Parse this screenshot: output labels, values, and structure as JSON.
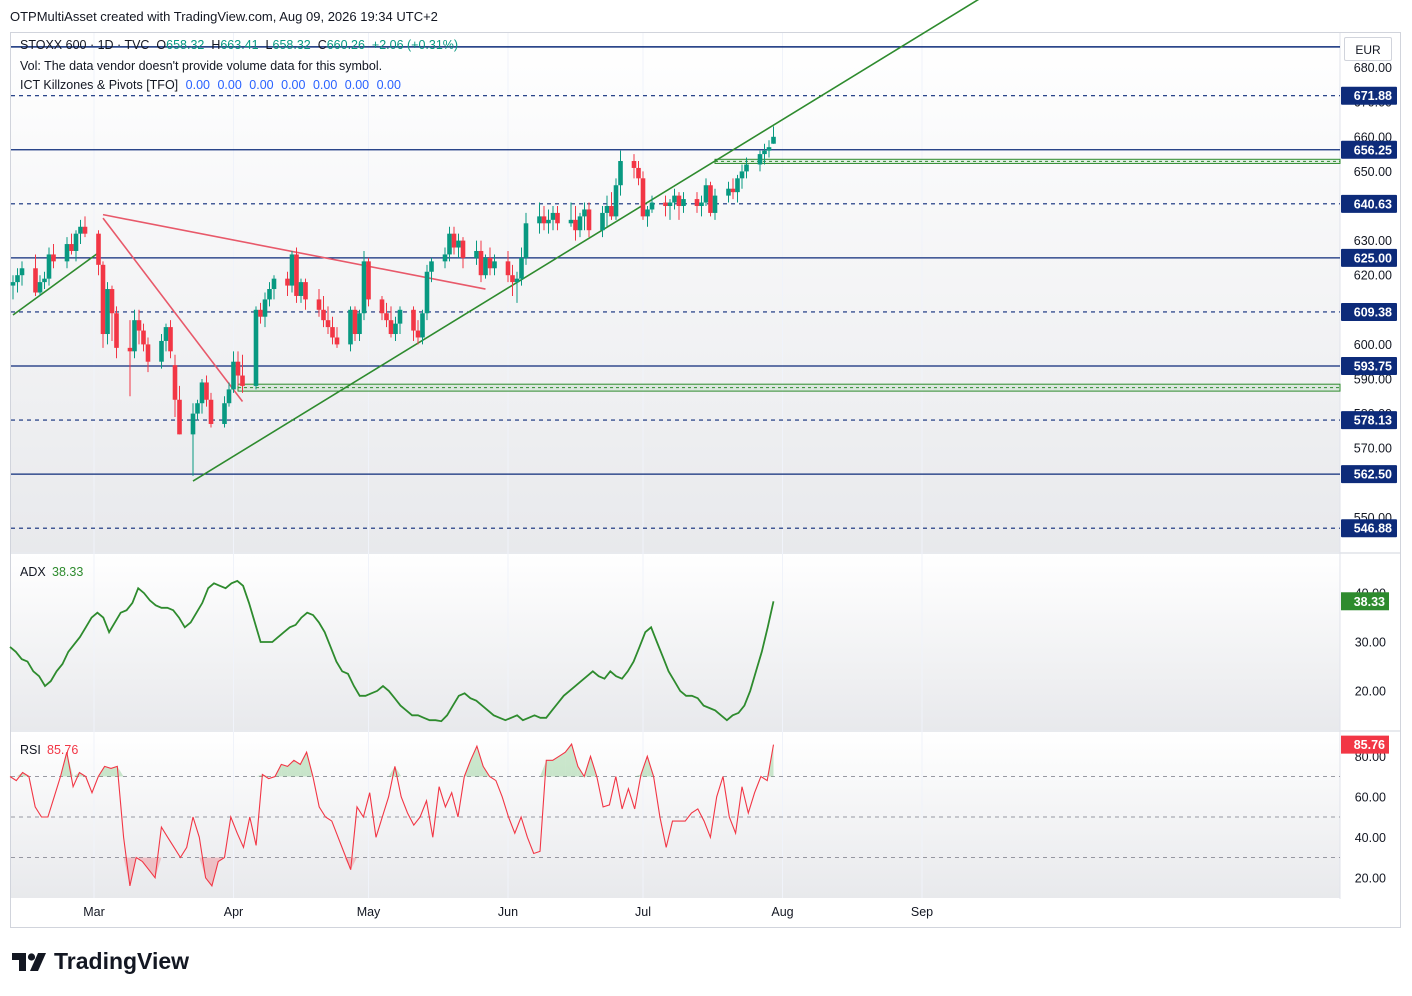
{
  "header": {
    "caption": "OTPMultiAsset created with TradingView.com, Aug 09, 2026 19:34 UTC+2"
  },
  "legend": {
    "symbol": "STOXX 600 · 1D · TVC",
    "o_label": "O",
    "o": "658.32",
    "h_label": "H",
    "h": "663.41",
    "l_label": "L",
    "l": "658.32",
    "c_label": "C",
    "c": "660.26",
    "change": "+2.06 (+0.31%)",
    "vol": "Vol: The data vendor doesn't provide volume data for this symbol.",
    "ict_name": "ICT Killzones & Pivots [TFO]",
    "ict_values": [
      "0.00",
      "0.00",
      "0.00",
      "0.00",
      "0.00",
      "0.00",
      "0.00"
    ]
  },
  "currency": "EUR",
  "brand": {
    "name": "TradingView"
  },
  "colors": {
    "up": "#089981",
    "down": "#f23645",
    "green_line": "#2e8b2e",
    "red_line": "#e8596a",
    "pivot": "#0d2b7a",
    "adx": "#2e8b2e",
    "rsi": "#f23645",
    "label_green": "#2e8b2e",
    "label_red": "#f23645"
  },
  "chart_data": [
    {
      "type": "candlestick",
      "title": "STOXX 600 · 1D · TVC",
      "ylim": [
        540,
        690
      ],
      "y_ticks": [
        "680.00",
        "670.00",
        "660.00",
        "650.00",
        "630.00",
        "620.00",
        "600.00",
        "590.00",
        "580.00",
        "570.00",
        "550.00"
      ],
      "x_ticks": [
        "Mar",
        "Apr",
        "May",
        "Jun",
        "Jul",
        "Aug",
        "Sep"
      ],
      "x_tick_dates": [
        "2026-03-01",
        "2026-04-01",
        "2026-05-01",
        "2026-06-01",
        "2026-07-01",
        "2026-08-01",
        "2026-09-01"
      ],
      "dates_start": "2026-02-11",
      "candles": [
        [
          617,
          620,
          613,
          618
        ],
        [
          618,
          622,
          615,
          620
        ],
        [
          620,
          624,
          617,
          622
        ],
        [
          622,
          626,
          614,
          615
        ],
        [
          615,
          620,
          614,
          618
        ],
        [
          618,
          621,
          616,
          619
        ],
        [
          619,
          628,
          617,
          626
        ],
        [
          626,
          629,
          622,
          624
        ],
        [
          624,
          631,
          622,
          629
        ],
        [
          629,
          632,
          626,
          627
        ],
        [
          627,
          633,
          624,
          632
        ],
        [
          632,
          636,
          629,
          634
        ],
        [
          634,
          637,
          631,
          632
        ],
        [
          632,
          633,
          620,
          623
        ],
        [
          623,
          624,
          599,
          603
        ],
        [
          603,
          618,
          600,
          616
        ],
        [
          616,
          617,
          601,
          609
        ],
        [
          609,
          611,
          596,
          599
        ],
        [
          599,
          607,
          585,
          598
        ],
        [
          598,
          610,
          596,
          607
        ],
        [
          607,
          610,
          600,
          604
        ],
        [
          604,
          606,
          598,
          600
        ],
        [
          600,
          602,
          592,
          595
        ],
        [
          595,
          603,
          593,
          601
        ],
        [
          601,
          606,
          598,
          605
        ],
        [
          605,
          607,
          596,
          598
        ],
        [
          594,
          597,
          579,
          584
        ],
        [
          584,
          588,
          574,
          574
        ],
        [
          574,
          583,
          562,
          580
        ],
        [
          580,
          584,
          578,
          583
        ],
        [
          583,
          590,
          580,
          589
        ],
        [
          589,
          591,
          582,
          584
        ],
        [
          584,
          586,
          576,
          577
        ],
        [
          577,
          585,
          576,
          583
        ],
        [
          583,
          589,
          582,
          587
        ],
        [
          587,
          598,
          586,
          595
        ],
        [
          595,
          598,
          588,
          591
        ],
        [
          591,
          597,
          586,
          588
        ],
        [
          588,
          611,
          587,
          610
        ],
        [
          610,
          612,
          606,
          608
        ],
        [
          608,
          615,
          605,
          613
        ],
        [
          613,
          618,
          611,
          616
        ],
        [
          616,
          620,
          613,
          619
        ],
        [
          619,
          621,
          614,
          617
        ],
        [
          617,
          627,
          615,
          626
        ],
        [
          626,
          628,
          612,
          614
        ],
        [
          614,
          619,
          612,
          618
        ],
        [
          618,
          619,
          610,
          613
        ],
        [
          613,
          616,
          608,
          610
        ],
        [
          610,
          614,
          605,
          607
        ],
        [
          607,
          611,
          603,
          605
        ],
        [
          605,
          608,
          600,
          602
        ],
        [
          602,
          605,
          599,
          600
        ],
        [
          600,
          611,
          598,
          610
        ],
        [
          610,
          611,
          601,
          603
        ],
        [
          603,
          610,
          601,
          609
        ],
        [
          609,
          627,
          607,
          624
        ],
        [
          624,
          625,
          611,
          613
        ],
        [
          613,
          614,
          607,
          609
        ],
        [
          609,
          612,
          605,
          607
        ],
        [
          607,
          611,
          602,
          603
        ],
        [
          603,
          608,
          601,
          606
        ],
        [
          606,
          611,
          603,
          610
        ],
        [
          610,
          611,
          601,
          604
        ],
        [
          604,
          607,
          600,
          602
        ],
        [
          602,
          610,
          600,
          609
        ],
        [
          609,
          623,
          607,
          621
        ],
        [
          621,
          625,
          618,
          624
        ],
        [
          624,
          628,
          622,
          626
        ],
        [
          626,
          634,
          624,
          632
        ],
        [
          632,
          634,
          626,
          628
        ],
        [
          628,
          632,
          625,
          630
        ],
        [
          630,
          631,
          622,
          625
        ],
        [
          625,
          630,
          623,
          627
        ],
        [
          627,
          630,
          618,
          620
        ],
        [
          620,
          626,
          619,
          625
        ],
        [
          625,
          628,
          620,
          622
        ],
        [
          622,
          626,
          620,
          624
        ],
        [
          624,
          627,
          618,
          620
        ],
        [
          620,
          623,
          614,
          618
        ],
        [
          618,
          621,
          612,
          619
        ],
        [
          619,
          628,
          617,
          625
        ],
        [
          625,
          638,
          623,
          635
        ],
        [
          635,
          641,
          632,
          637
        ],
        [
          637,
          640,
          633,
          635
        ],
        [
          635,
          639,
          632,
          636
        ],
        [
          636,
          640,
          633,
          638
        ],
        [
          638,
          640,
          633,
          635
        ],
        [
          635,
          641,
          634,
          636
        ],
        [
          636,
          640,
          630,
          633
        ],
        [
          633,
          638,
          631,
          637
        ],
        [
          637,
          641,
          633,
          639
        ],
        [
          639,
          641,
          631,
          633
        ],
        [
          633,
          640,
          631,
          638
        ],
        [
          638,
          643,
          634,
          640
        ],
        [
          640,
          644,
          636,
          637
        ],
        [
          637,
          648,
          636,
          646
        ],
        [
          646,
          656,
          643,
          653
        ],
        [
          653,
          655,
          648,
          651
        ],
        [
          651,
          653,
          646,
          648
        ],
        [
          648,
          650,
          636,
          637
        ],
        [
          637,
          640,
          634,
          639
        ],
        [
          639,
          643,
          638,
          641
        ],
        [
          641,
          643,
          637,
          640
        ],
        [
          640,
          642,
          636,
          641
        ],
        [
          641,
          645,
          639,
          643
        ],
        [
          643,
          644,
          636,
          640
        ],
        [
          640,
          644,
          638,
          642
        ],
        [
          642,
          644,
          638,
          640
        ],
        [
          640,
          643,
          637,
          641
        ],
        [
          641,
          648,
          640,
          646
        ],
        [
          646,
          647,
          637,
          638
        ],
        [
          638,
          645,
          636,
          643
        ],
        [
          643,
          647,
          641,
          645
        ],
        [
          645,
          648,
          642,
          644
        ],
        [
          644,
          649,
          641,
          648
        ],
        [
          648,
          652,
          645,
          650
        ],
        [
          650,
          654,
          648,
          652
        ],
        [
          652,
          656,
          650,
          655
        ],
        [
          655,
          658,
          652,
          656
        ],
        [
          656,
          659,
          654,
          657
        ],
        [
          658,
          663,
          658,
          660
        ]
      ],
      "pivot_levels": [
        {
          "label": "671.88",
          "value": 671.88,
          "style": "dashed"
        },
        {
          "label": "656.25",
          "value": 656.25,
          "style": "solid"
        },
        {
          "label": "640.63",
          "value": 640.63,
          "style": "dashed"
        },
        {
          "label": "625.00",
          "value": 625.0,
          "style": "solid"
        },
        {
          "label": "609.38",
          "value": 609.38,
          "style": "dashed"
        },
        {
          "label": "593.75",
          "value": 593.75,
          "style": "solid"
        },
        {
          "label": "578.13",
          "value": 578.13,
          "style": "dashed"
        },
        {
          "label": "562.50",
          "value": 562.5,
          "style": "solid"
        },
        {
          "label": "546.88",
          "value": 546.88,
          "style": "dashed"
        }
      ],
      "top_level": 686.0
    },
    {
      "type": "line",
      "title": "ADX",
      "value_label": "38.33",
      "ylim": [
        12,
        48
      ],
      "y_ticks": [
        "40.00",
        "30.00",
        "20.00"
      ],
      "values": [
        29,
        28,
        26.5,
        26,
        24,
        23,
        21,
        22,
        24,
        25.5,
        28,
        29.5,
        31,
        33,
        35,
        36,
        35,
        32,
        34,
        36,
        36.5,
        38,
        41,
        40,
        38.5,
        37.5,
        37,
        37,
        36.5,
        35,
        33,
        34,
        36,
        38,
        41,
        42,
        41.5,
        41,
        42,
        42.5,
        41.5,
        38,
        34,
        30,
        30,
        30,
        31,
        32,
        33,
        33.5,
        35,
        36,
        35.5,
        34,
        32,
        29,
        26,
        24,
        23.5,
        21,
        19,
        19,
        19.5,
        20,
        21,
        20,
        18.5,
        17,
        16,
        15,
        15,
        14.5,
        14,
        14,
        13.8,
        15,
        17,
        19,
        19.5,
        18.5,
        18,
        17,
        16,
        15,
        14.5,
        14,
        14.5,
        15,
        14,
        14.5,
        15,
        14.5,
        14.5,
        16,
        17.5,
        19,
        20,
        21,
        22,
        23,
        24,
        23,
        22.5,
        24,
        23,
        22.5,
        24,
        26,
        29,
        32,
        33,
        30,
        27,
        24,
        22,
        20,
        19,
        19,
        18.5,
        17,
        16.5,
        16,
        15,
        14,
        15,
        15.5,
        17,
        20,
        24,
        28,
        33,
        38.33
      ]
    },
    {
      "type": "line",
      "title": "RSI",
      "value_label": "85.76",
      "ylim": [
        10,
        92
      ],
      "y_ticks": [
        "80.00",
        "60.00",
        "40.00",
        "20.00"
      ],
      "bands": [
        70,
        50,
        30
      ],
      "values": [
        70,
        68,
        72,
        70,
        55,
        50,
        50,
        60,
        70,
        82,
        65,
        72,
        70,
        62,
        70,
        75,
        74,
        75,
        40,
        16,
        30,
        28,
        24,
        20,
        45,
        40,
        35,
        30,
        35,
        50,
        40,
        20,
        16,
        28,
        30,
        50,
        42,
        35,
        50,
        36,
        71,
        69,
        70,
        76,
        75,
        78,
        76,
        82,
        70,
        55,
        50,
        48,
        40,
        32,
        24,
        55,
        50,
        62,
        40,
        50,
        60,
        75,
        60,
        52,
        46,
        50,
        58,
        40,
        65,
        55,
        62,
        50,
        70,
        78,
        85,
        75,
        70,
        68,
        60,
        50,
        42,
        50,
        40,
        32,
        33,
        78,
        78,
        80,
        82,
        86,
        75,
        70,
        80,
        70,
        55,
        56,
        70,
        54,
        64,
        54,
        71,
        80,
        70,
        50,
        35,
        48,
        48,
        48,
        52,
        54,
        48,
        40,
        60,
        70,
        50,
        42,
        65,
        52,
        62,
        70,
        68,
        85.76
      ]
    }
  ]
}
